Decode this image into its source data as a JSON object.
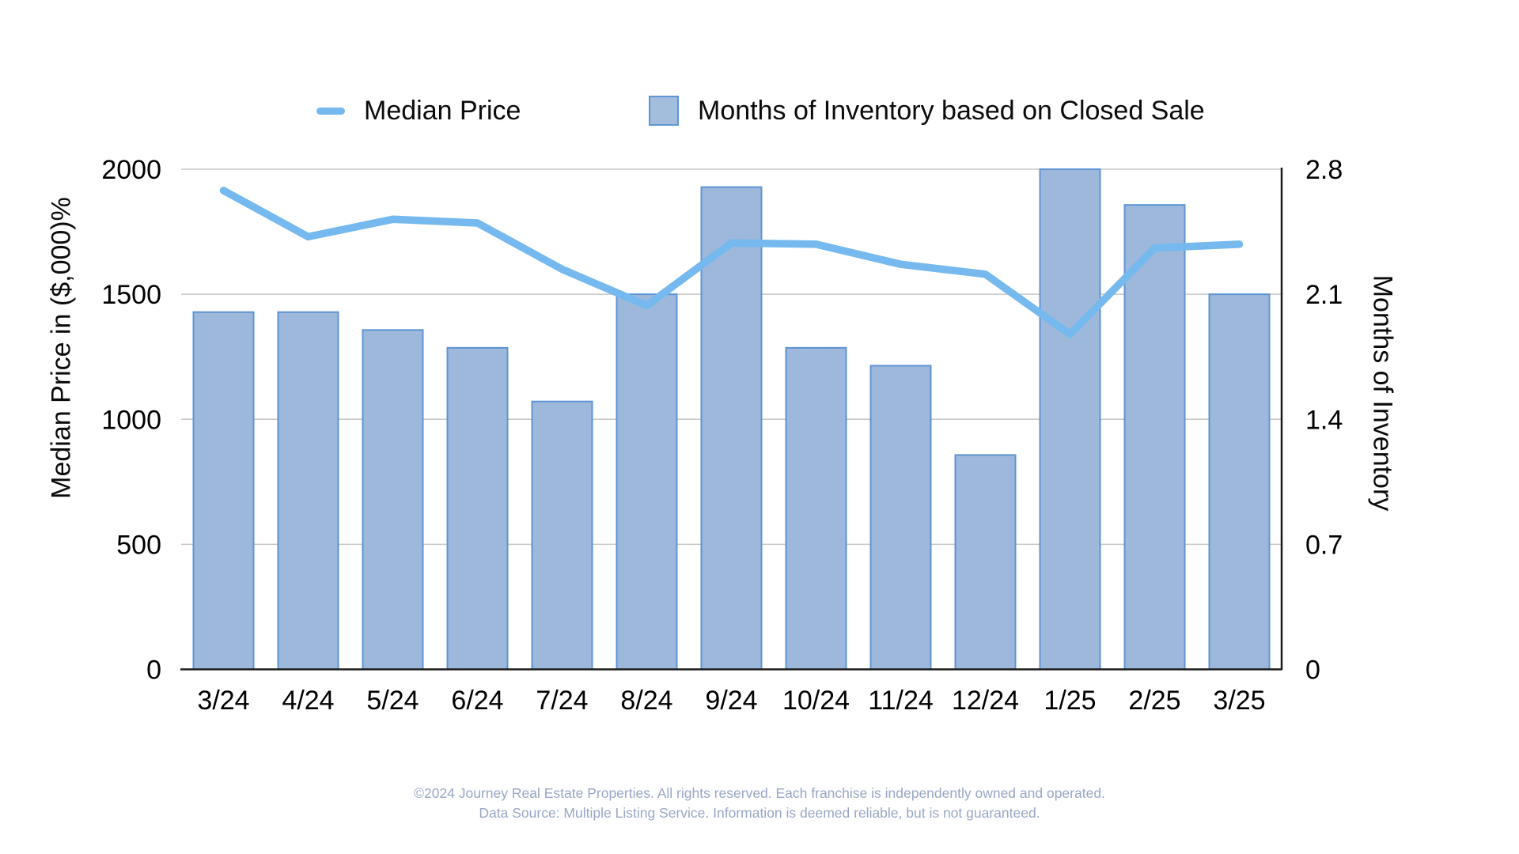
{
  "chart_data": {
    "type": "bar",
    "subtype": "dual-axis bar+line combo",
    "categories": [
      "3/24",
      "4/24",
      "5/24",
      "6/24",
      "7/24",
      "8/24",
      "9/24",
      "10/24",
      "11/24",
      "12/24",
      "1/25",
      "2/25",
      "3/25"
    ],
    "series": [
      {
        "name": "Median Price",
        "type": "line",
        "axis": "left",
        "color": "#75B9EE",
        "values": [
          1915,
          1730,
          1800,
          1785,
          1600,
          1455,
          1705,
          1700,
          1620,
          1580,
          1340,
          1685,
          1700
        ]
      },
      {
        "name": "Months of Inventory based on Closed Sale",
        "type": "bar",
        "axis": "right",
        "fill": "#9DB8DB",
        "border": "#5E94D4",
        "values": [
          2.0,
          2.0,
          1.9,
          1.8,
          1.5,
          2.1,
          2.7,
          1.8,
          1.7,
          1.2,
          2.8,
          2.6,
          2.1
        ]
      }
    ],
    "left_axis": {
      "label": "Median Price in ($,000)%",
      "ticks": [
        0,
        500,
        1000,
        1500,
        2000
      ],
      "min": 0,
      "max": 2000
    },
    "right_axis": {
      "label": "Months of Inventory",
      "ticks": [
        0,
        0.7,
        1.4,
        2.1,
        2.8
      ],
      "min": 0,
      "max": 2.8
    },
    "grid": true,
    "legend_position": "top"
  },
  "legend": {
    "median_price_label": "Median Price",
    "months_inventory_label": "Months of Inventory based on Closed Sale"
  },
  "axes": {
    "left_title": "Median Price in ($,000)%",
    "right_title": "Months of Inventory"
  },
  "footer": {
    "line1": "©2024 Journey Real Estate Properties. All rights reserved. Each franchise is independently owned and operated.",
    "line2": "Data Source: Multiple Listing Service. Information is deemed reliable, but is not guaranteed."
  },
  "colors": {
    "line": "#75B9EE",
    "bar_fill": "#9DB8DB",
    "bar_border": "#5E94D4",
    "gridline": "#C6C6C6",
    "axis_line": "#1A1A1A",
    "tick_text": "#000000",
    "footer_text": "#99A6C7"
  }
}
